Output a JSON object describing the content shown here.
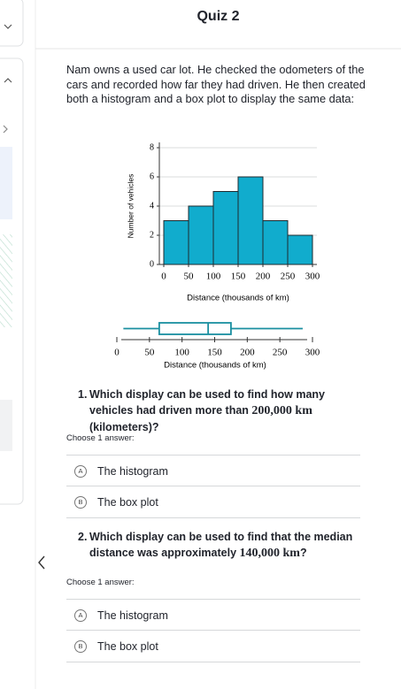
{
  "header": {
    "title": "Quiz 2"
  },
  "problem": {
    "text": "Nam owns a used car lot. He checked the odometers of the cars and recorded how far they had driven. He then created both a histogram and a box plot to display the same data:"
  },
  "chart_data": [
    {
      "type": "histogram",
      "ylabel": "Number of vehicles",
      "xlabel": "Distance (thousands of km)",
      "bins": [
        0,
        50,
        100,
        150,
        200,
        250,
        300
      ],
      "values": [
        3,
        4,
        5,
        6,
        3,
        2
      ],
      "color": "#11accd",
      "xlim": [
        0,
        300
      ],
      "xticks": [
        0,
        50,
        100,
        150,
        200,
        250,
        300
      ],
      "ylim": [
        0,
        8
      ],
      "yticks": [
        0,
        2,
        4,
        6,
        8
      ],
      "grid": true
    },
    {
      "type": "box",
      "xlabel": "Distance (thousands of km)",
      "min": 10,
      "q1": 65,
      "median": 140,
      "q3": 175,
      "max": 285,
      "color": "#1a8fa0",
      "xlim": [
        0,
        300
      ],
      "xticks": [
        0,
        50,
        100,
        150,
        200,
        250,
        300
      ]
    }
  ],
  "questions": [
    {
      "number": "1.",
      "text": [
        "Which display can be used to find how many vehicles had driven more than ",
        "200,000 km",
        " (kilometers)?"
      ],
      "prompt": "Choose 1 answer:",
      "choices": [
        {
          "letter": "A",
          "text": "The histogram"
        },
        {
          "letter": "B",
          "text": "The box plot"
        }
      ]
    },
    {
      "number": "2.",
      "text": [
        "Which display can be used to find that the median distance was approximately ",
        "140,000 km",
        "?"
      ],
      "prompt": "Choose 1 answer:",
      "choices": [
        {
          "letter": "A",
          "text": "The histogram"
        },
        {
          "letter": "B",
          "text": "The box plot"
        }
      ]
    }
  ]
}
